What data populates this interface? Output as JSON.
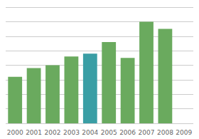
{
  "chart_data": {
    "type": "bar",
    "categories": [
      "2000",
      "2001",
      "2002",
      "2003",
      "2004",
      "2005",
      "2006",
      "2007",
      "2008",
      "2009"
    ],
    "values": [
      32,
      38,
      40,
      46,
      48,
      56,
      45,
      70,
      65,
      0
    ],
    "colors": [
      "#6aaa5e",
      "#6aaa5e",
      "#6aaa5e",
      "#6aaa5e",
      "#3a9ea5",
      "#6aaa5e",
      "#6aaa5e",
      "#6aaa5e",
      "#6aaa5e",
      "#6aaa5e"
    ],
    "ylim": [
      0,
      80
    ],
    "yticks": [
      0,
      10,
      20,
      30,
      40,
      50,
      60,
      70,
      80
    ],
    "grid": true,
    "tick_labels": "x"
  }
}
